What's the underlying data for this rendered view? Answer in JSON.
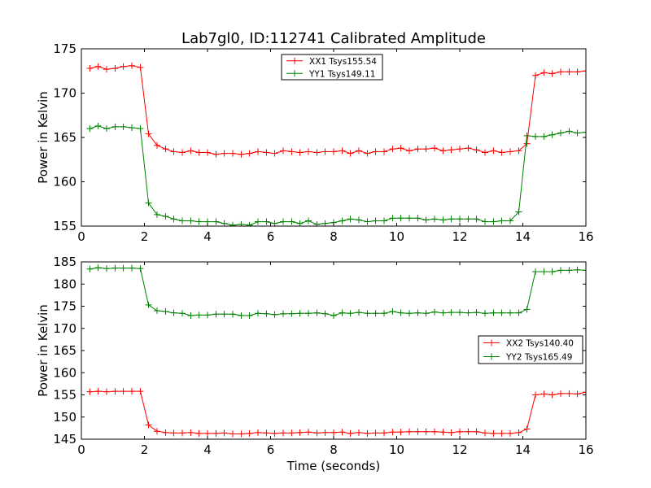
{
  "title": "Lab7gl0, ID:112741 Calibrated Amplitude",
  "chart_data": [
    {
      "type": "line",
      "title": "Lab7gl0, ID:112741 Calibrated Amplitude",
      "xlabel": "",
      "ylabel": "Power in Kelvin",
      "xlim": [
        0,
        16
      ],
      "ylim": [
        155,
        175
      ],
      "xticks": [
        "0",
        "2",
        "4",
        "6",
        "8",
        "10",
        "12",
        "14",
        "16"
      ],
      "yticks": [
        "155",
        "160",
        "165",
        "170",
        "175"
      ],
      "grid": false,
      "legend_position": "top-center",
      "x": [
        0.27,
        0.53,
        0.8,
        1.07,
        1.33,
        1.6,
        1.87,
        2.13,
        2.4,
        2.67,
        2.93,
        3.2,
        3.47,
        3.73,
        4.0,
        4.27,
        4.53,
        4.8,
        5.07,
        5.33,
        5.6,
        5.87,
        6.13,
        6.4,
        6.67,
        6.93,
        7.2,
        7.47,
        7.73,
        8.0,
        8.27,
        8.53,
        8.8,
        9.07,
        9.33,
        9.6,
        9.87,
        10.13,
        10.4,
        10.67,
        10.93,
        11.2,
        11.47,
        11.73,
        12.0,
        12.27,
        12.53,
        12.8,
        13.07,
        13.33,
        13.6,
        13.87,
        14.13,
        14.4,
        14.67,
        14.93,
        15.2,
        15.47,
        15.73,
        16.0
      ],
      "series": [
        {
          "name": "XX1 Tsys155.54",
          "color": "#ff0000",
          "values": [
            172.8,
            173.0,
            172.7,
            172.8,
            173.0,
            173.1,
            172.9,
            165.4,
            164.1,
            163.7,
            163.4,
            163.3,
            163.5,
            163.3,
            163.3,
            163.1,
            163.2,
            163.2,
            163.1,
            163.2,
            163.4,
            163.3,
            163.2,
            163.5,
            163.4,
            163.3,
            163.4,
            163.3,
            163.4,
            163.4,
            163.5,
            163.2,
            163.5,
            163.2,
            163.4,
            163.4,
            163.7,
            163.8,
            163.5,
            163.7,
            163.7,
            163.8,
            163.5,
            163.6,
            163.7,
            163.8,
            163.6,
            163.3,
            163.5,
            163.3,
            163.4,
            163.5,
            164.3,
            172.0,
            172.3,
            172.2,
            172.4,
            172.4,
            172.4,
            172.5
          ]
        },
        {
          "name": "YY1 Tsys149.11",
          "color": "#008000",
          "values": [
            166.0,
            166.3,
            166.0,
            166.2,
            166.2,
            166.1,
            166.0,
            157.6,
            156.3,
            156.1,
            155.8,
            155.6,
            155.6,
            155.5,
            155.5,
            155.5,
            155.3,
            155.1,
            155.2,
            155.1,
            155.5,
            155.5,
            155.3,
            155.5,
            155.5,
            155.3,
            155.6,
            155.2,
            155.3,
            155.4,
            155.6,
            155.8,
            155.7,
            155.5,
            155.6,
            155.6,
            155.9,
            155.9,
            155.9,
            155.9,
            155.7,
            155.8,
            155.7,
            155.8,
            155.8,
            155.8,
            155.8,
            155.5,
            155.5,
            155.6,
            155.6,
            156.6,
            165.2,
            165.1,
            165.1,
            165.3,
            165.5,
            165.7,
            165.5,
            165.6
          ]
        }
      ]
    },
    {
      "type": "line",
      "title": "",
      "xlabel": "Time (seconds)",
      "ylabel": "Power in Kelvin",
      "xlim": [
        0,
        16
      ],
      "ylim": [
        145,
        185
      ],
      "xticks": [
        "0",
        "2",
        "4",
        "6",
        "8",
        "10",
        "12",
        "14",
        "16"
      ],
      "yticks": [
        "145",
        "150",
        "155",
        "160",
        "165",
        "170",
        "175",
        "180",
        "185"
      ],
      "grid": false,
      "legend_position": "center-right",
      "x": [
        0.27,
        0.53,
        0.8,
        1.07,
        1.33,
        1.6,
        1.87,
        2.13,
        2.4,
        2.67,
        2.93,
        3.2,
        3.47,
        3.73,
        4.0,
        4.27,
        4.53,
        4.8,
        5.07,
        5.33,
        5.6,
        5.87,
        6.13,
        6.4,
        6.67,
        6.93,
        7.2,
        7.47,
        7.73,
        8.0,
        8.27,
        8.53,
        8.8,
        9.07,
        9.33,
        9.6,
        9.87,
        10.13,
        10.4,
        10.67,
        10.93,
        11.2,
        11.47,
        11.73,
        12.0,
        12.27,
        12.53,
        12.8,
        13.07,
        13.33,
        13.6,
        13.87,
        14.13,
        14.4,
        14.67,
        14.93,
        15.2,
        15.47,
        15.73,
        16.0
      ],
      "series": [
        {
          "name": "XX2 Tsys140.40",
          "color": "#ff0000",
          "values": [
            155.7,
            155.8,
            155.7,
            155.8,
            155.8,
            155.8,
            155.8,
            148.2,
            146.8,
            146.5,
            146.4,
            146.4,
            146.5,
            146.3,
            146.3,
            146.3,
            146.4,
            146.2,
            146.2,
            146.3,
            146.5,
            146.4,
            146.3,
            146.4,
            146.4,
            146.5,
            146.6,
            146.4,
            146.5,
            146.5,
            146.6,
            146.3,
            146.5,
            146.3,
            146.4,
            146.4,
            146.6,
            146.6,
            146.7,
            146.7,
            146.7,
            146.7,
            146.6,
            146.5,
            146.7,
            146.7,
            146.7,
            146.4,
            146.3,
            146.3,
            146.3,
            146.5,
            147.3,
            155.0,
            155.2,
            155.0,
            155.3,
            155.3,
            155.2,
            155.6
          ]
        },
        {
          "name": "YY2 Tsys165.49",
          "color": "#008000",
          "values": [
            183.4,
            183.7,
            183.5,
            183.6,
            183.6,
            183.6,
            183.5,
            175.3,
            174.0,
            173.8,
            173.5,
            173.4,
            172.9,
            173.0,
            173.0,
            173.2,
            173.2,
            173.2,
            172.9,
            172.9,
            173.4,
            173.3,
            173.1,
            173.3,
            173.3,
            173.4,
            173.4,
            173.5,
            173.3,
            172.9,
            173.5,
            173.4,
            173.6,
            173.4,
            173.4,
            173.4,
            173.8,
            173.5,
            173.4,
            173.5,
            173.4,
            173.7,
            173.5,
            173.6,
            173.6,
            173.5,
            173.6,
            173.4,
            173.5,
            173.5,
            173.5,
            173.5,
            174.3,
            182.8,
            182.8,
            182.8,
            183.1,
            183.1,
            183.2,
            183.1
          ]
        }
      ]
    }
  ]
}
